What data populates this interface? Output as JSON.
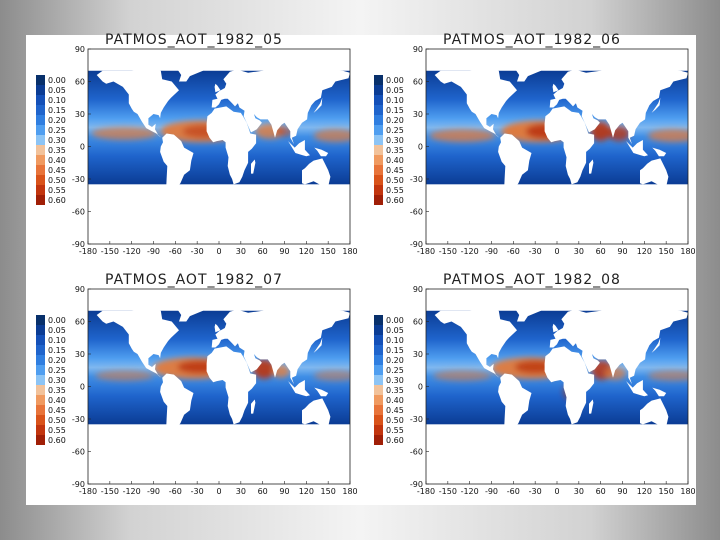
{
  "panels": [
    {
      "title": "PATMOS_AOT_1982_05"
    },
    {
      "title": "PATMOS_AOT_1982_06"
    },
    {
      "title": "PATMOS_AOT_1982_07"
    },
    {
      "title": "PATMOS_AOT_1982_08"
    }
  ],
  "colorbar": {
    "labels": [
      "0.00",
      "0.05",
      "0.10",
      "0.15",
      "0.20",
      "0.25",
      "0.30",
      "0.35",
      "0.40",
      "0.45",
      "0.50",
      "0.55",
      "0.60"
    ],
    "colors": [
      "#08306b",
      "#0b3c94",
      "#1450b8",
      "#1f64cc",
      "#2f7ee0",
      "#4f9ef0",
      "#8cc4f5",
      "#f2c29a",
      "#f09a60",
      "#e8743a",
      "#d9531a",
      "#c2350e",
      "#a01f07"
    ]
  },
  "axes": {
    "x_ticks": [
      "-180",
      "-150",
      "-120",
      "-90",
      "-60",
      "-30",
      "0",
      "30",
      "60",
      "90",
      "120",
      "150",
      "180"
    ],
    "x_ticks_left_panels": [
      "-180",
      "-150",
      "-120",
      "-90",
      "-60",
      "-30",
      "0",
      "30",
      "60",
      "90",
      "120",
      "150",
      "180"
    ],
    "y_ticks": [
      "90",
      "60",
      "30",
      "0",
      "-30",
      "-60",
      "-90"
    ]
  },
  "theme": {
    "ocean_low": "#1c56b8",
    "ocean_mid": "#3f8ee6",
    "dust_band": "#e07a3c",
    "dust_core": "#b8300c",
    "land": "#ffffff"
  }
}
